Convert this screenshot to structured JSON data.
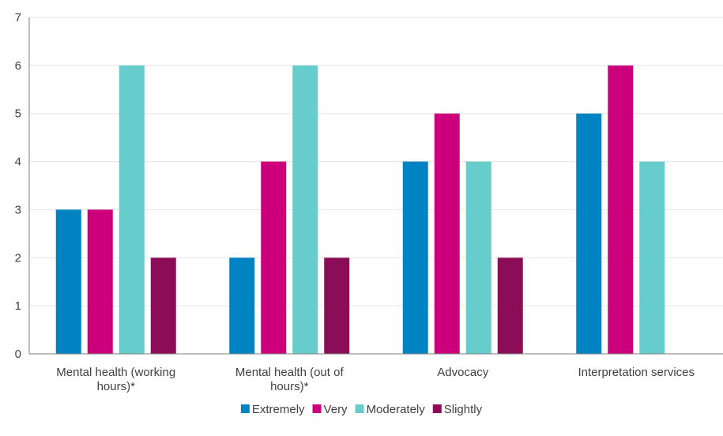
{
  "chart_data": {
    "type": "bar",
    "title": "",
    "xlabel": "",
    "ylabel": "",
    "ylim": [
      0,
      7
    ],
    "yticks": [
      0,
      1,
      2,
      3,
      4,
      5,
      6,
      7
    ],
    "grid": true,
    "legend_position": "bottom",
    "categories": [
      [
        "Mental health (working",
        "hours)*"
      ],
      [
        "Mental health (out of",
        "hours)*"
      ],
      [
        "Advocacy"
      ],
      [
        "Interpretation services"
      ]
    ],
    "series": [
      {
        "name": "Extremely",
        "color": "#0083C3",
        "values": [
          3,
          2,
          4,
          5
        ]
      },
      {
        "name": "Very",
        "color": "#CC007A",
        "values": [
          3,
          4,
          5,
          6
        ]
      },
      {
        "name": "Moderately",
        "color": "#66CCCC",
        "values": [
          6,
          6,
          4,
          4
        ]
      },
      {
        "name": "Slightly",
        "color": "#8B0D57",
        "values": [
          2,
          2,
          2,
          null
        ]
      }
    ]
  }
}
